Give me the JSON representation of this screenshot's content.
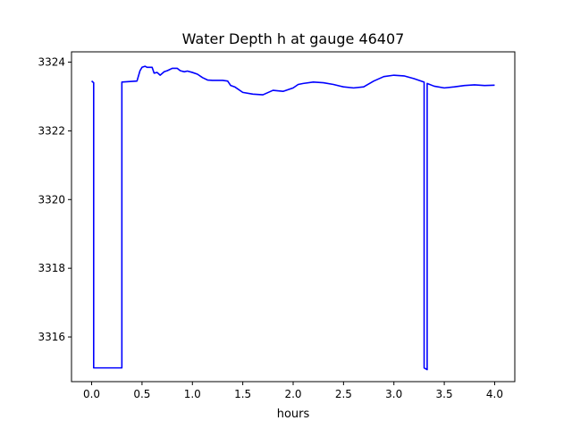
{
  "chart_data": {
    "type": "line",
    "title": "Water Depth h at gauge 46407",
    "xlabel": "hours",
    "ylabel": "",
    "xlim": [
      -0.2,
      4.2
    ],
    "ylim": [
      3314.7,
      3324.3
    ],
    "xticks": [
      0.0,
      0.5,
      1.0,
      1.5,
      2.0,
      2.5,
      3.0,
      3.5,
      4.0
    ],
    "xtick_labels": [
      "0.0",
      "0.5",
      "1.0",
      "1.5",
      "2.0",
      "2.5",
      "3.0",
      "3.5",
      "4.0"
    ],
    "yticks": [
      3316,
      3318,
      3320,
      3322,
      3324
    ],
    "ytick_labels": [
      "3316",
      "3318",
      "3320",
      "3322",
      "3324"
    ],
    "grid": false,
    "series": [
      {
        "color": "#0000ff",
        "x": [
          0.0,
          0.02,
          0.02,
          0.3,
          0.3,
          0.45,
          0.48,
          0.5,
          0.53,
          0.55,
          0.6,
          0.62,
          0.65,
          0.68,
          0.72,
          0.75,
          0.8,
          0.85,
          0.88,
          0.92,
          0.95,
          1.0,
          1.05,
          1.1,
          1.15,
          1.2,
          1.3,
          1.35,
          1.38,
          1.42,
          1.5,
          1.6,
          1.7,
          1.8,
          1.9,
          2.0,
          2.05,
          2.1,
          2.2,
          2.3,
          2.4,
          2.5,
          2.6,
          2.7,
          2.8,
          2.9,
          3.0,
          3.1,
          3.2,
          3.3,
          3.3,
          3.33,
          3.33,
          3.4,
          3.5,
          3.6,
          3.7,
          3.8,
          3.9,
          4.0
        ],
        "y": [
          3323.45,
          3323.4,
          3315.1,
          3315.1,
          3323.42,
          3323.45,
          3323.75,
          3323.85,
          3323.88,
          3323.85,
          3323.85,
          3323.68,
          3323.7,
          3323.62,
          3323.72,
          3323.75,
          3323.82,
          3323.82,
          3323.75,
          3323.72,
          3323.74,
          3323.7,
          3323.65,
          3323.55,
          3323.48,
          3323.47,
          3323.47,
          3323.45,
          3323.32,
          3323.28,
          3323.12,
          3323.07,
          3323.05,
          3323.18,
          3323.15,
          3323.25,
          3323.35,
          3323.38,
          3323.42,
          3323.4,
          3323.35,
          3323.28,
          3323.25,
          3323.28,
          3323.45,
          3323.58,
          3323.62,
          3323.6,
          3323.52,
          3323.42,
          3315.1,
          3315.05,
          3323.38,
          3323.3,
          3323.25,
          3323.28,
          3323.32,
          3323.34,
          3323.32,
          3323.33
        ]
      }
    ]
  }
}
